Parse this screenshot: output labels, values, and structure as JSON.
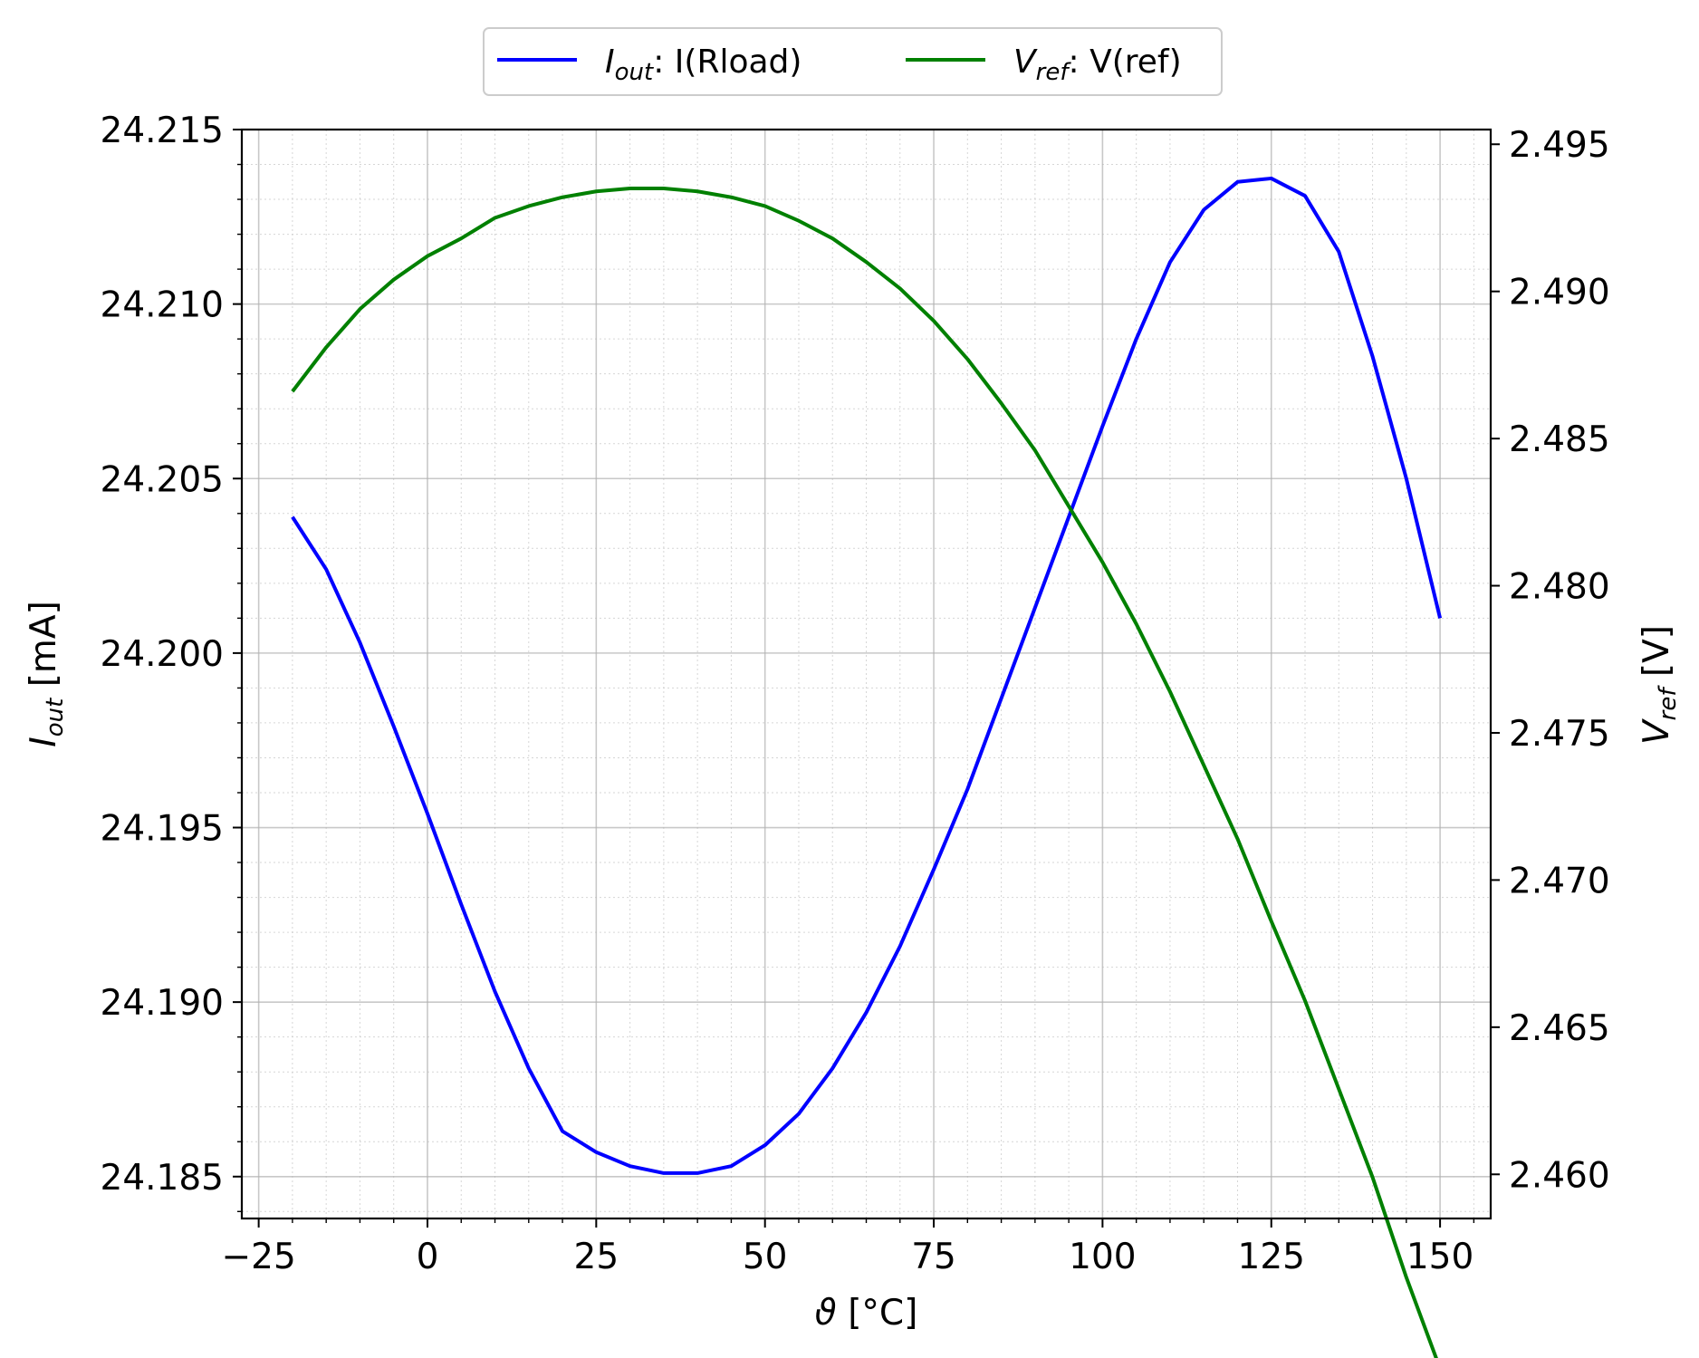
{
  "chart_data": {
    "type": "line",
    "x_label_symbol": "ϑ",
    "x_label_unit": " [°C]",
    "xlim": [
      -27.5,
      157.5
    ],
    "x_ticks": [
      -25,
      0,
      25,
      50,
      75,
      100,
      125,
      150
    ],
    "x_tick_labels": [
      "−25",
      "0",
      "25",
      "50",
      "75",
      "100",
      "125",
      "150"
    ],
    "left_axis": {
      "symbol": "I",
      "subscript": "out",
      "unit": " [mA]",
      "ylim": [
        24.1838,
        24.215
      ],
      "ticks": [
        24.185,
        24.19,
        24.195,
        24.2,
        24.205,
        24.21,
        24.215
      ],
      "tick_labels": [
        "24.185",
        "24.190",
        "24.195",
        "24.200",
        "24.205",
        "24.210",
        "24.215"
      ]
    },
    "right_axis": {
      "symbol": "V",
      "subscript": "ref",
      "unit": " [V]",
      "ylim": [
        2.4585,
        2.4955
      ],
      "ticks": [
        2.46,
        2.465,
        2.47,
        2.475,
        2.48,
        2.485,
        2.49,
        2.495
      ],
      "tick_labels": [
        "2.460",
        "2.465",
        "2.470",
        "2.475",
        "2.480",
        "2.485",
        "2.490",
        "2.495"
      ]
    },
    "grid": true,
    "minor_grid": true,
    "legend_position": "top-center, outside",
    "series": [
      {
        "name": "I(Rload)",
        "legend_symbol": "I",
        "legend_subscript": "out",
        "axis": "left",
        "color": "#0000ff",
        "x": [
          -20,
          -15,
          -10,
          -5,
          0,
          5,
          10,
          15,
          20,
          25,
          30,
          35,
          40,
          45,
          50,
          55,
          60,
          65,
          70,
          75,
          80,
          85,
          90,
          95,
          100,
          105,
          110,
          115,
          120,
          125,
          130,
          135,
          140,
          145,
          150
        ],
        "y": [
          24.2039,
          24.2024,
          24.2003,
          24.1979,
          24.1954,
          24.1928,
          24.1903,
          24.1881,
          24.1863,
          24.1857,
          24.1853,
          24.1851,
          24.1851,
          24.1853,
          24.1859,
          24.1868,
          24.1881,
          24.1897,
          24.1916,
          24.1938,
          24.1961,
          24.1987,
          24.2013,
          24.2039,
          24.2065,
          24.209,
          24.2112,
          24.2127,
          24.2135,
          24.2136,
          24.2131,
          24.2115,
          24.2085,
          24.205,
          24.201
        ]
      },
      {
        "name": "V(ref)",
        "legend_symbol": "V",
        "legend_subscript": "ref",
        "axis": "right",
        "color": "#008000",
        "x": [
          -20,
          -15,
          -10,
          -5,
          0,
          5,
          10,
          15,
          20,
          25,
          30,
          35,
          40,
          45,
          50,
          55,
          60,
          65,
          70,
          75,
          80,
          85,
          90,
          95,
          100,
          105,
          110,
          115,
          120,
          125,
          130,
          135,
          140,
          145,
          150
        ],
        "y": [
          2.4866,
          2.4881,
          2.4894,
          2.4904,
          2.4912,
          2.4918,
          2.4925,
          2.4929,
          2.4932,
          2.4934,
          2.4935,
          2.4935,
          2.4934,
          2.4932,
          2.4929,
          2.4924,
          2.4918,
          2.491,
          2.4901,
          2.489,
          2.4877,
          2.4862,
          2.4846,
          2.4827,
          2.4808,
          2.4787,
          2.4764,
          2.4739,
          2.4714,
          2.4686,
          2.4659,
          2.4629,
          2.4599,
          2.4565,
          2.4534
        ]
      }
    ]
  }
}
